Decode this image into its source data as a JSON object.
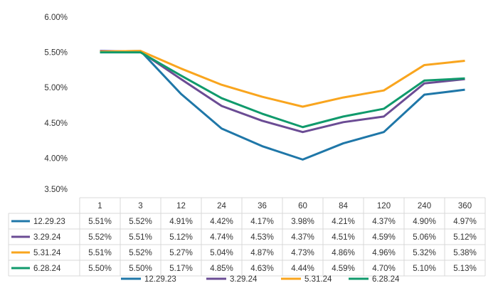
{
  "chart_data": {
    "type": "line",
    "title": "",
    "xlabel": "",
    "ylabel": "",
    "ylim": [
      3.5,
      6.0
    ],
    "yticks": [
      "3.50%",
      "4.00%",
      "4.50%",
      "5.00%",
      "5.50%",
      "6.00%"
    ],
    "ytick_values": [
      3.5,
      4.0,
      4.5,
      5.0,
      5.5,
      6.0
    ],
    "categories": [
      "1",
      "3",
      "12",
      "24",
      "36",
      "60",
      "84",
      "120",
      "240",
      "360"
    ],
    "legend_position": "bottom",
    "series": [
      {
        "name": "12.29.23",
        "color": "#1f77a8",
        "values": [
          5.51,
          5.52,
          4.91,
          4.42,
          4.17,
          3.98,
          4.21,
          4.37,
          4.9,
          4.97
        ],
        "labels": [
          "5.51%",
          "5.52%",
          "4.91%",
          "4.42%",
          "4.17%",
          "3.98%",
          "4.21%",
          "4.37%",
          "4.90%",
          "4.97%"
        ]
      },
      {
        "name": "3.29.24",
        "color": "#6b4c94",
        "values": [
          5.52,
          5.51,
          5.12,
          4.74,
          4.53,
          4.37,
          4.51,
          4.59,
          5.06,
          5.12
        ],
        "labels": [
          "5.52%",
          "5.51%",
          "5.12%",
          "4.74%",
          "4.53%",
          "4.37%",
          "4.51%",
          "4.59%",
          "5.06%",
          "5.12%"
        ]
      },
      {
        "name": "5.31.24",
        "color": "#f9a51e",
        "values": [
          5.51,
          5.52,
          5.27,
          5.04,
          4.87,
          4.73,
          4.86,
          4.96,
          5.32,
          5.38
        ],
        "labels": [
          "5.51%",
          "5.52%",
          "5.27%",
          "5.04%",
          "4.87%",
          "4.73%",
          "4.86%",
          "4.96%",
          "5.32%",
          "5.38%"
        ]
      },
      {
        "name": "6.28.24",
        "color": "#109a6c",
        "values": [
          5.5,
          5.5,
          5.17,
          4.85,
          4.63,
          4.44,
          4.59,
          4.7,
          5.1,
          5.13
        ],
        "labels": [
          "5.50%",
          "5.50%",
          "5.17%",
          "4.85%",
          "4.63%",
          "4.44%",
          "4.59%",
          "4.70%",
          "5.10%",
          "5.13%"
        ]
      }
    ]
  }
}
